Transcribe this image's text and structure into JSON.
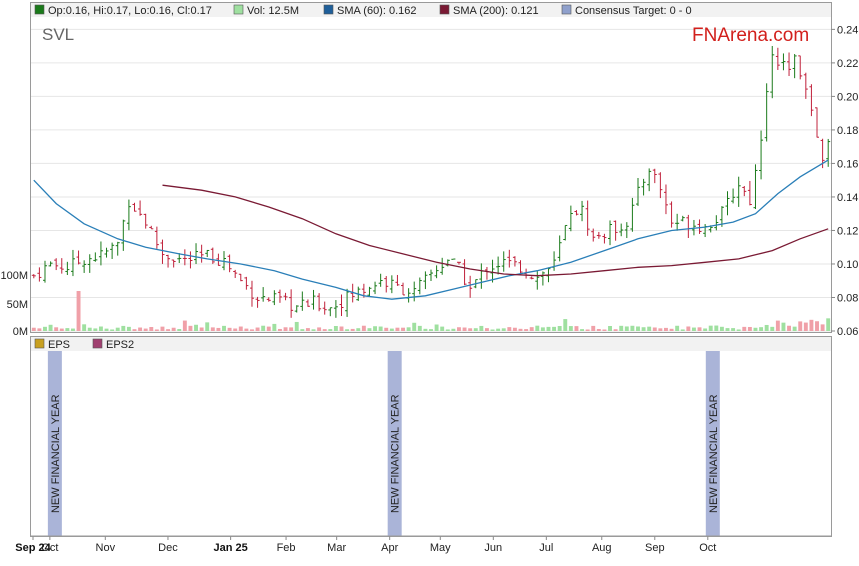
{
  "ticker": "SVL",
  "brand": "FNArena.com",
  "legend": {
    "ohlc": "Op:0.16, Hi:0.17, Lo:0.16, Cl:0.17",
    "vol": "Vol: 12.5M",
    "sma60": "SMA (60): 0.162",
    "sma200": "SMA (200): 0.121",
    "consensus": "Consensus Target: 0 - 0"
  },
  "lower_legend": {
    "eps": "EPS",
    "eps2": "EPS2"
  },
  "event_label": "NEW FINANCIAL YEAR",
  "colors": {
    "up": "#1a7a1a",
    "down": "#c0203a",
    "sma60": "#2a7fb8",
    "sma200": "#7a1a34",
    "vol_up": "#9fe0a0",
    "vol_down": "#f0a0a8",
    "event_bar": "#aab4d8",
    "brand": "#d2201c",
    "grid": "#e6e6e6",
    "ohlc_swatch": "#1a7a1a",
    "vol_swatch": "#9fe0a0",
    "sma60_swatch": "#1f5f9a",
    "sma200_swatch": "#7a1a34",
    "consensus_swatch": "#8fa0cc",
    "eps_swatch": "#c8a020",
    "eps2_swatch": "#a04070"
  },
  "chart_data": {
    "type": "candlestick",
    "title": "SVL",
    "price_axis": {
      "range": [
        0.06,
        0.245
      ],
      "ticks": [
        "0.06",
        "0.08",
        "0.10",
        "0.12",
        "0.14",
        "0.16",
        "0.18",
        "0.20",
        "0.22",
        "0.24"
      ]
    },
    "volume_axis": {
      "ticks": [
        "0M",
        "50M",
        "100M"
      ]
    },
    "months": [
      {
        "label": "Sep 24",
        "bold": true
      },
      {
        "label": "Oct",
        "bold": false
      },
      {
        "label": "Nov",
        "bold": false
      },
      {
        "label": "Dec",
        "bold": false
      },
      {
        "label": "Jan 25",
        "bold": true
      },
      {
        "label": "Feb",
        "bold": false
      },
      {
        "label": "Mar",
        "bold": false
      },
      {
        "label": "Apr",
        "bold": false
      },
      {
        "label": "May",
        "bold": false
      },
      {
        "label": "Jun",
        "bold": false
      },
      {
        "label": "Jul",
        "bold": false
      },
      {
        "label": "Aug",
        "bold": false
      },
      {
        "label": "Sep",
        "bold": false
      },
      {
        "label": "Oct",
        "bold": false
      }
    ],
    "events_month_index": [
      1,
      7,
      13
    ],
    "close_path": [
      [
        0,
        0.093
      ],
      [
        3,
        0.1
      ],
      [
        6,
        0.098
      ],
      [
        9,
        0.103
      ],
      [
        12,
        0.105
      ],
      [
        15,
        0.112
      ],
      [
        17,
        0.138
      ],
      [
        20,
        0.125
      ],
      [
        23,
        0.106
      ],
      [
        27,
        0.102
      ],
      [
        31,
        0.105
      ],
      [
        34,
        0.102
      ],
      [
        37,
        0.09
      ],
      [
        40,
        0.08
      ],
      [
        44,
        0.078
      ],
      [
        47,
        0.074
      ],
      [
        50,
        0.077
      ],
      [
        53,
        0.074
      ],
      [
        56,
        0.08
      ],
      [
        59,
        0.085
      ],
      [
        62,
        0.09
      ],
      [
        65,
        0.086
      ],
      [
        68,
        0.083
      ],
      [
        71,
        0.094
      ],
      [
        74,
        0.103
      ],
      [
        76,
        0.097
      ],
      [
        78,
        0.085
      ],
      [
        81,
        0.098
      ],
      [
        84,
        0.101
      ],
      [
        87,
        0.098
      ],
      [
        90,
        0.092
      ],
      [
        93,
        0.1
      ],
      [
        96,
        0.132
      ],
      [
        98,
        0.132
      ],
      [
        100,
        0.115
      ],
      [
        103,
        0.12
      ],
      [
        106,
        0.125
      ],
      [
        108,
        0.142
      ],
      [
        110,
        0.158
      ],
      [
        112,
        0.145
      ],
      [
        114,
        0.125
      ],
      [
        117,
        0.125
      ],
      [
        120,
        0.122
      ],
      [
        123,
        0.13
      ],
      [
        126,
        0.148
      ],
      [
        128,
        0.138
      ],
      [
        130,
        0.172
      ],
      [
        132,
        0.227
      ],
      [
        134,
        0.218
      ],
      [
        136,
        0.222
      ],
      [
        138,
        0.208
      ],
      [
        140,
        0.175
      ],
      [
        141,
        0.165
      ],
      [
        142,
        0.17
      ]
    ],
    "sma60": [
      [
        0,
        0.15
      ],
      [
        4,
        0.136
      ],
      [
        9,
        0.124
      ],
      [
        15,
        0.115
      ],
      [
        20,
        0.11
      ],
      [
        26,
        0.106
      ],
      [
        31,
        0.103
      ],
      [
        37,
        0.1
      ],
      [
        43,
        0.096
      ],
      [
        48,
        0.091
      ],
      [
        54,
        0.086
      ],
      [
        59,
        0.081
      ],
      [
        64,
        0.079
      ],
      [
        70,
        0.081
      ],
      [
        75,
        0.085
      ],
      [
        80,
        0.089
      ],
      [
        85,
        0.093
      ],
      [
        90,
        0.096
      ],
      [
        96,
        0.101
      ],
      [
        102,
        0.108
      ],
      [
        108,
        0.115
      ],
      [
        114,
        0.12
      ],
      [
        120,
        0.122
      ],
      [
        125,
        0.125
      ],
      [
        129,
        0.13
      ],
      [
        133,
        0.142
      ],
      [
        137,
        0.152
      ],
      [
        142,
        0.162
      ]
    ],
    "sma200": [
      [
        23,
        0.147
      ],
      [
        30,
        0.144
      ],
      [
        36,
        0.14
      ],
      [
        42,
        0.134
      ],
      [
        48,
        0.127
      ],
      [
        54,
        0.118
      ],
      [
        60,
        0.111
      ],
      [
        66,
        0.106
      ],
      [
        72,
        0.101
      ],
      [
        78,
        0.097
      ],
      [
        84,
        0.094
      ],
      [
        90,
        0.093
      ],
      [
        96,
        0.094
      ],
      [
        102,
        0.096
      ],
      [
        108,
        0.098
      ],
      [
        114,
        0.099
      ],
      [
        120,
        0.101
      ],
      [
        126,
        0.103
      ],
      [
        132,
        0.108
      ],
      [
        137,
        0.115
      ],
      [
        142,
        0.121
      ]
    ]
  }
}
